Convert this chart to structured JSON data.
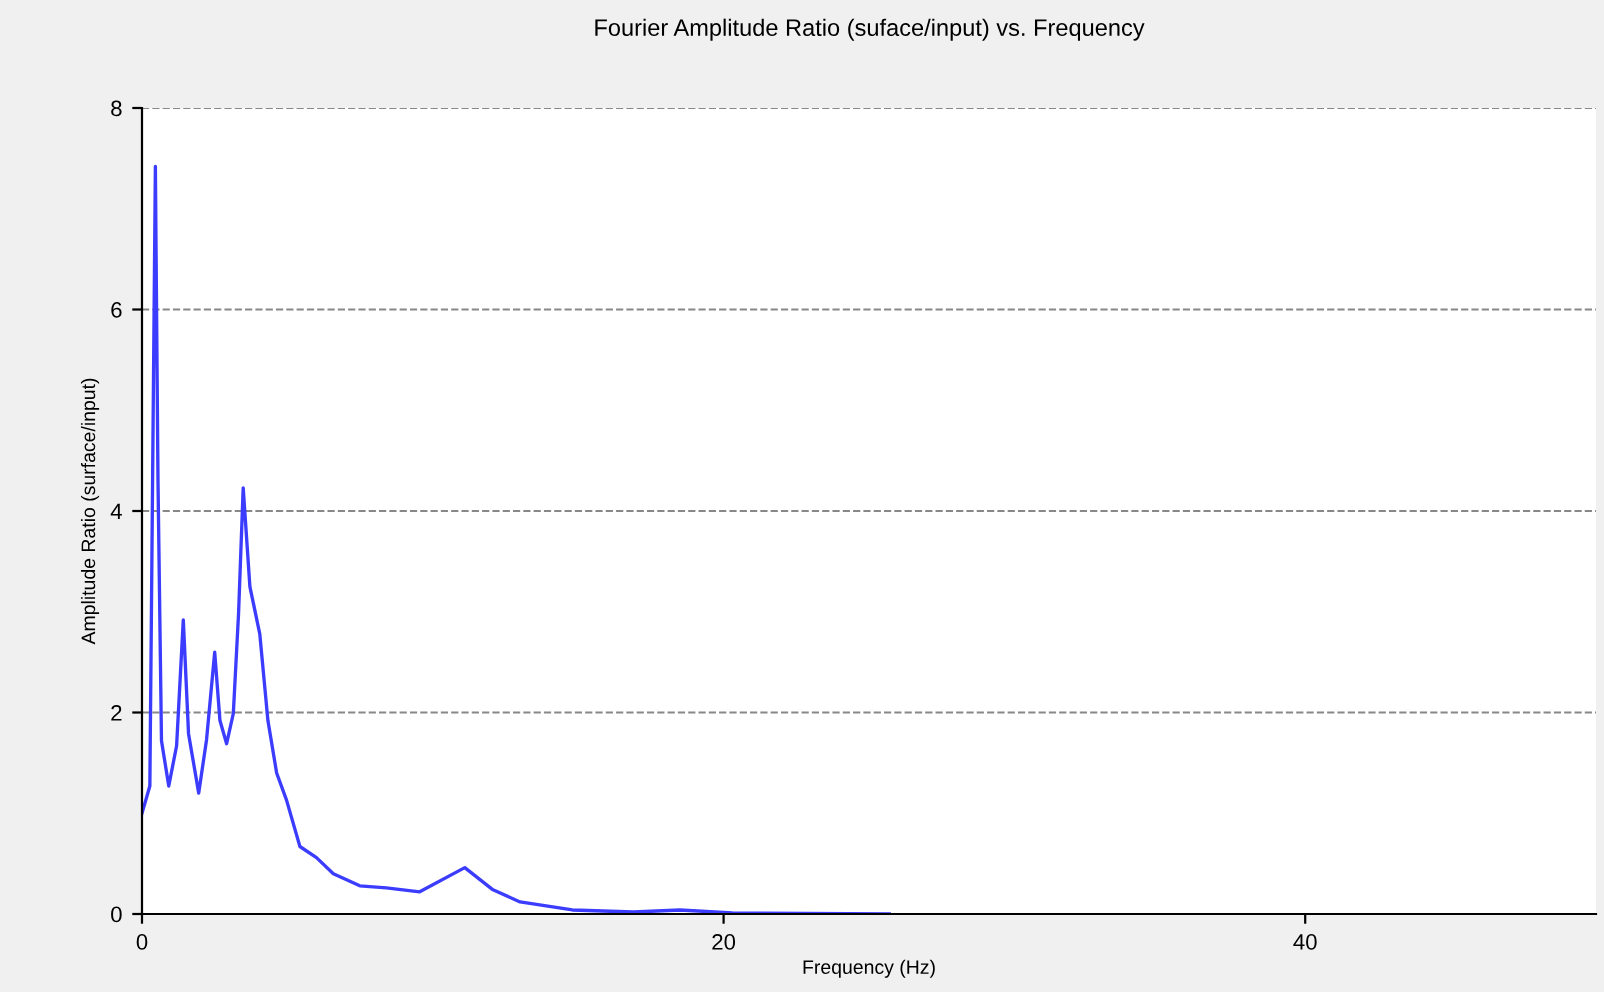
{
  "chart_data": {
    "type": "line",
    "title": "Fourier Amplitude Ratio (suface/input) vs. Frequency",
    "xlabel": "Frequency (Hz)",
    "ylabel": "Amplitude Ratio (surface/input)",
    "xlim": [
      0,
      50
    ],
    "ylim": [
      0,
      8
    ],
    "xticks": [
      0,
      20,
      40
    ],
    "yticks": [
      0,
      2,
      4,
      6,
      8
    ],
    "grid": "y",
    "series": [
      {
        "color": "#3c3cff",
        "x": [
          0,
          0.27,
          0.32,
          0.46,
          0.55,
          0.67,
          0.92,
          1.19,
          1.42,
          1.6,
          1.95,
          2.22,
          2.5,
          2.68,
          2.91,
          3.14,
          3.32,
          3.48,
          3.71,
          4.05,
          4.33,
          4.63,
          4.97,
          5.43,
          6.0,
          6.58,
          7.49,
          8.4,
          9.55,
          11.1,
          12.07,
          13.0,
          14.8,
          16.9,
          18.5,
          20.3,
          25.7
        ],
        "values": [
          1.0,
          1.27,
          2.86,
          7.42,
          4.3,
          1.72,
          1.27,
          1.67,
          2.92,
          1.79,
          1.2,
          1.73,
          2.6,
          1.92,
          1.69,
          1.99,
          2.98,
          4.23,
          3.25,
          2.78,
          1.92,
          1.4,
          1.13,
          0.67,
          0.56,
          0.4,
          0.28,
          0.26,
          0.22,
          0.46,
          0.24,
          0.12,
          0.04,
          0.02,
          0.04,
          0.01,
          0
        ]
      }
    ]
  }
}
